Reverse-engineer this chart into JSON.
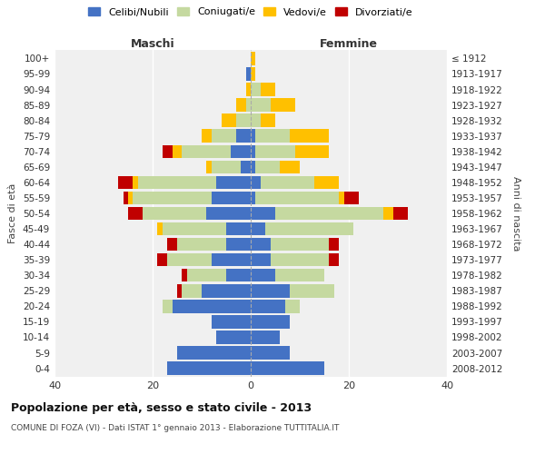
{
  "age_groups": [
    "0-4",
    "5-9",
    "10-14",
    "15-19",
    "20-24",
    "25-29",
    "30-34",
    "35-39",
    "40-44",
    "45-49",
    "50-54",
    "55-59",
    "60-64",
    "65-69",
    "70-74",
    "75-79",
    "80-84",
    "85-89",
    "90-94",
    "95-99",
    "100+"
  ],
  "birth_years": [
    "2008-2012",
    "2003-2007",
    "1998-2002",
    "1993-1997",
    "1988-1992",
    "1983-1987",
    "1978-1982",
    "1973-1977",
    "1968-1972",
    "1963-1967",
    "1958-1962",
    "1953-1957",
    "1948-1952",
    "1943-1947",
    "1938-1942",
    "1933-1937",
    "1928-1932",
    "1923-1927",
    "1918-1922",
    "1913-1917",
    "≤ 1912"
  ],
  "male": {
    "celibe": [
      17,
      15,
      7,
      8,
      16,
      10,
      5,
      8,
      5,
      5,
      9,
      8,
      7,
      2,
      4,
      3,
      0,
      0,
      0,
      1,
      0
    ],
    "coniugato": [
      0,
      0,
      0,
      0,
      2,
      4,
      8,
      9,
      10,
      13,
      13,
      16,
      16,
      6,
      10,
      5,
      3,
      1,
      0,
      0,
      0
    ],
    "vedovo": [
      0,
      0,
      0,
      0,
      0,
      0,
      0,
      0,
      0,
      1,
      0,
      1,
      1,
      1,
      2,
      2,
      3,
      2,
      1,
      0,
      0
    ],
    "divorziato": [
      0,
      0,
      0,
      0,
      0,
      1,
      1,
      2,
      2,
      0,
      3,
      1,
      3,
      0,
      2,
      0,
      0,
      0,
      0,
      0,
      0
    ]
  },
  "female": {
    "nubile": [
      15,
      8,
      6,
      8,
      7,
      8,
      5,
      4,
      4,
      3,
      5,
      1,
      2,
      1,
      1,
      1,
      0,
      0,
      0,
      0,
      0
    ],
    "coniugata": [
      0,
      0,
      0,
      0,
      3,
      9,
      10,
      12,
      12,
      18,
      22,
      17,
      11,
      5,
      8,
      7,
      2,
      4,
      2,
      0,
      0
    ],
    "vedova": [
      0,
      0,
      0,
      0,
      0,
      0,
      0,
      0,
      0,
      0,
      2,
      1,
      5,
      4,
      7,
      8,
      3,
      5,
      3,
      1,
      1
    ],
    "divorziata": [
      0,
      0,
      0,
      0,
      0,
      0,
      0,
      2,
      2,
      0,
      3,
      3,
      0,
      0,
      0,
      0,
      0,
      0,
      0,
      0,
      0
    ]
  },
  "colors": {
    "celibe": "#4472c4",
    "coniugato": "#c5d9a0",
    "vedovo": "#ffc000",
    "divorziato": "#c00000"
  },
  "xlim": 40,
  "title": "Popolazione per età, sesso e stato civile - 2013",
  "subtitle": "COMUNE DI FOZA (VI) - Dati ISTAT 1° gennaio 2013 - Elaborazione TUTTITALIA.IT",
  "ylabel_left": "Fasce di età",
  "ylabel_right": "Anni di nascita",
  "xlabel_male": "Maschi",
  "xlabel_female": "Femmine",
  "legend_labels": [
    "Celibi/Nubili",
    "Coniugati/e",
    "Vedovi/e",
    "Divorziati/e"
  ],
  "background_color": "#f0f0f0"
}
